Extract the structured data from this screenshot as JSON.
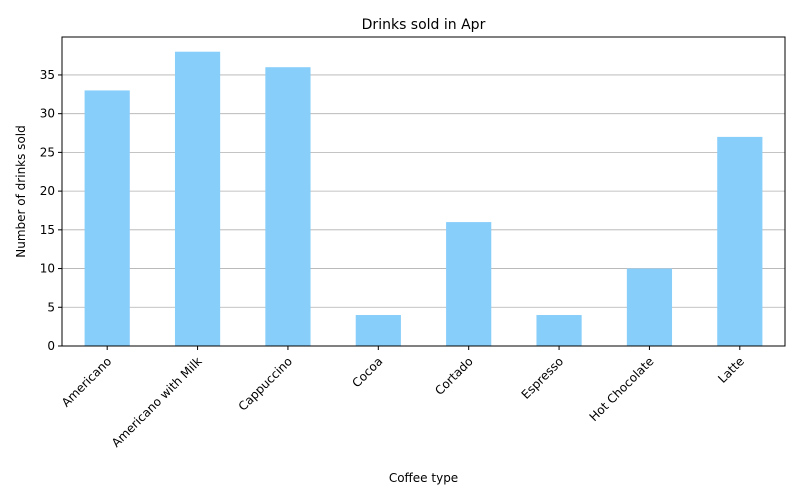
{
  "chart_data": {
    "type": "bar",
    "title": "Drinks sold in Apr",
    "xlabel": "Coffee type",
    "ylabel": "Number of drinks sold",
    "categories": [
      "Americano",
      "Americano with Milk",
      "Cappuccino",
      "Cocoa",
      "Cortado",
      "Espresso",
      "Hot Chocolate",
      "Latte"
    ],
    "values": [
      33,
      38,
      36,
      4,
      16,
      4,
      10,
      27
    ],
    "ylim": [
      0,
      39.9
    ],
    "yticks": [
      0,
      5,
      10,
      15,
      20,
      25,
      30,
      35
    ],
    "grid": "horizontal",
    "bar_color": "#87cefa",
    "legend": "none"
  }
}
